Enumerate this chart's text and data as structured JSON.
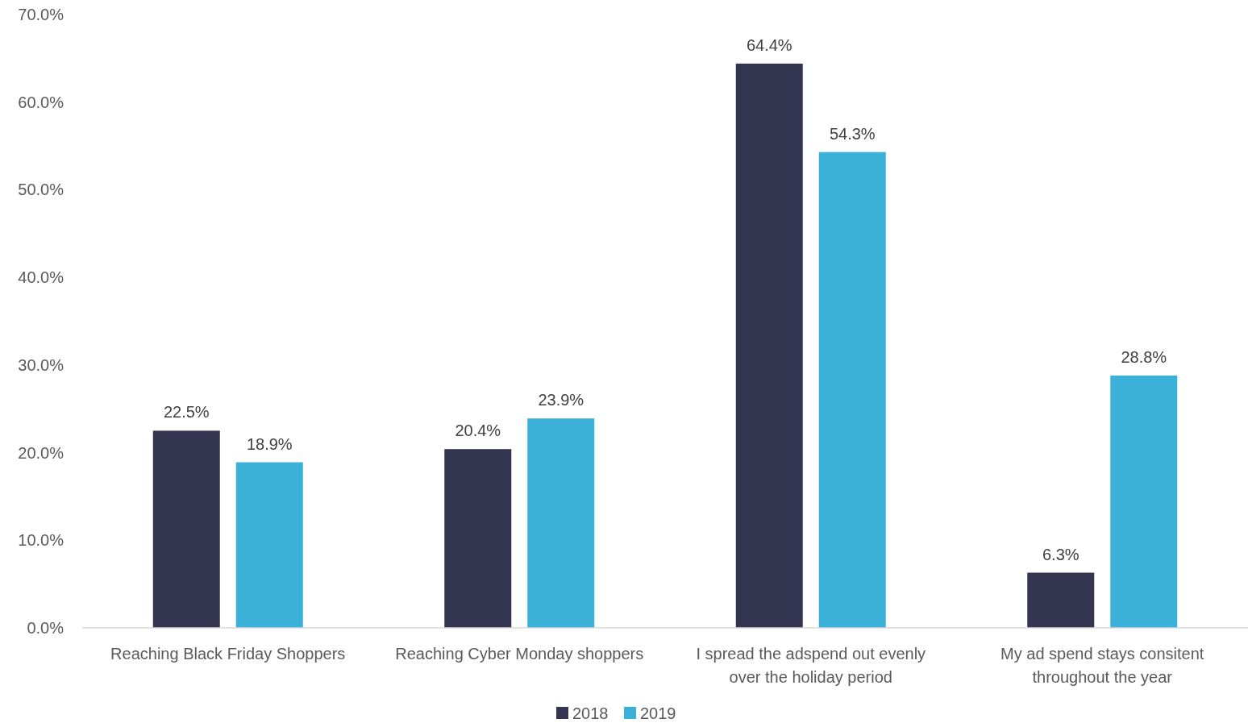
{
  "chart_data": {
    "type": "bar",
    "categories": [
      "Reaching Black Friday Shoppers",
      "Reaching Cyber Monday shoppers",
      "I spread the adspend out evenly over the holiday period",
      "My ad spend stays consitent throughout the year"
    ],
    "series": [
      {
        "name": "2018",
        "color": "#343551",
        "values": [
          22.5,
          20.4,
          64.4,
          6.3
        ],
        "value_labels": [
          "22.5%",
          "20.4%",
          "64.4%",
          "6.3%"
        ]
      },
      {
        "name": "2019",
        "color": "#3bb0d9",
        "values": [
          18.9,
          23.9,
          54.3,
          28.8
        ],
        "value_labels": [
          "18.9%",
          "23.9%",
          "54.3%",
          "28.8%"
        ]
      }
    ],
    "ylim": [
      0,
      70
    ],
    "yticks": [
      {
        "value": 0,
        "label": "0.0%"
      },
      {
        "value": 10,
        "label": "10.0%"
      },
      {
        "value": 20,
        "label": "20.0%"
      },
      {
        "value": 30,
        "label": "30.0%"
      },
      {
        "value": 40,
        "label": "40.0%"
      },
      {
        "value": 50,
        "label": "50.0%"
      },
      {
        "value": 60,
        "label": "60.0%"
      },
      {
        "value": 70,
        "label": "70.0%"
      }
    ],
    "grid": false,
    "legend": "bottom"
  }
}
